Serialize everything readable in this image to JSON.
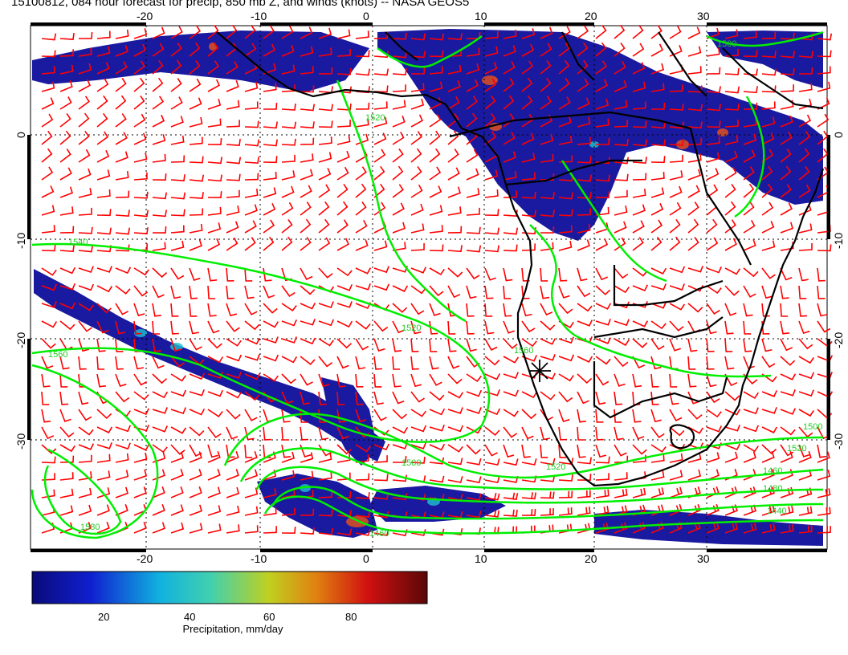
{
  "title": "15100812, 084 hour forecast for precip, 850 mb Z, and winds (knots) -- NASA GEOS5",
  "map": {
    "lon_range": [
      -30,
      40
    ],
    "lat_range": [
      -40,
      10
    ],
    "lon_ticks": [
      "-20",
      "-10",
      "0",
      "10",
      "20",
      "30"
    ],
    "lat_ticks": [
      "0",
      "-10",
      "-20",
      "-30"
    ],
    "contour_labels": [
      "1500",
      "1520",
      "1540",
      "1560",
      "1580",
      "1520",
      "1520",
      "1500",
      "1480",
      "1460",
      "1440",
      "1460",
      "1500",
      "1520",
      "1560"
    ],
    "wind_color": "#ff0000",
    "contour_color": "#00ee00",
    "coast_color": "#000000"
  },
  "colorbar": {
    "ticks": [
      "20",
      "40",
      "60",
      "80"
    ],
    "title": "Precipitation, mm/day",
    "range": [
      0,
      100
    ]
  }
}
